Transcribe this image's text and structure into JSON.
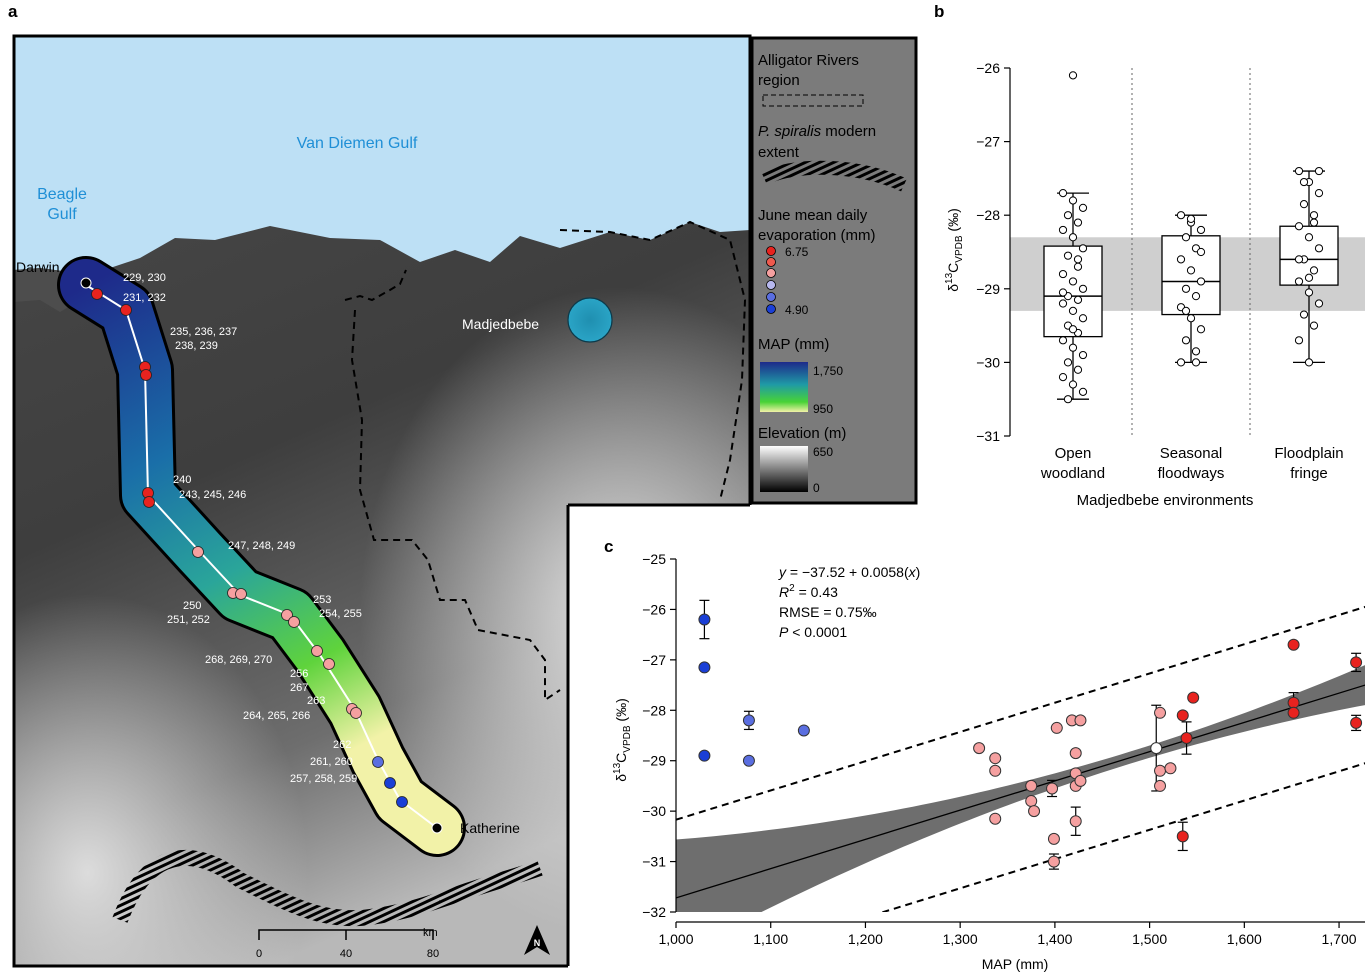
{
  "panels": {
    "a": "a",
    "b": "b",
    "c": "c"
  },
  "map": {
    "gulf_label": "Van Diemen Gulf",
    "beagle_label_1": "Beagle",
    "beagle_label_2": "Gulf",
    "town_darwin": "Darwin",
    "town_katherine": "Katherine",
    "site_madjedbebe": "Madjedbebe",
    "scale_labels": [
      "0",
      "40",
      "80"
    ],
    "scale_unit": "km",
    "north": "N",
    "sample_labels": [
      "229, 230",
      "231, 232",
      "235, 236, 237",
      "238, 239",
      "240",
      "243, 245, 246",
      "247, 248, 249",
      "250",
      "251, 252",
      "253",
      "254, 255",
      "268, 269, 270",
      "256",
      "267",
      "264, 265, 266",
      "263",
      "262",
      "261, 260",
      "257, 258, 259"
    ],
    "colors": {
      "water": "#bde0f5",
      "legend_bg": "#7b7b7b",
      "sea_label": "#1f8fd6",
      "evap_high": "#e8231f",
      "evap_mid": "#f5a0a0",
      "evap_low": "#1a3fd6"
    }
  },
  "legend": {
    "arr_1": "Alligator Rivers",
    "arr_2": "region",
    "ps_prefix": "P. spiralis",
    "ps_suffix": " modern",
    "ps_2": "extent",
    "evap_1": "June mean daily",
    "evap_2": "evaporation (mm)",
    "evap_max": "6.75",
    "evap_min": "4.90",
    "map_title": "MAP (mm)",
    "map_max": "1,750",
    "map_min": "950",
    "elev_title": "Elevation (m)",
    "elev_max": "650",
    "elev_min": "0"
  },
  "chart_data": [
    {
      "type": "box",
      "panel": "b",
      "categories": [
        "Open\nwoodland",
        "Seasonal\nfloodways",
        "Floodplain\nfringe"
      ],
      "ylabel": "δ13C VPDB (‰)",
      "xlabel": "Madjedbebe environments",
      "ylim": [
        -31,
        -26
      ],
      "yticks": [
        -26,
        -27,
        -28,
        -29,
        -30,
        -31
      ],
      "shaded_band": [
        -29.3,
        -28.3
      ],
      "boxes": [
        {
          "min": -30.5,
          "q1": -29.65,
          "median": -29.1,
          "q3": -28.42,
          "max": -27.7
        },
        {
          "min": -30.0,
          "q1": -29.35,
          "median": -28.9,
          "q3": -28.28,
          "max": -28.0
        },
        {
          "min": -30.0,
          "q1": -28.95,
          "median": -28.6,
          "q3": -28.15,
          "max": -27.4
        }
      ],
      "outliers": [
        {
          "group": 0,
          "y": -26.1
        }
      ],
      "points": [
        [
          -27.7,
          -27.8,
          -27.9,
          -28.0,
          -28.1,
          -28.2,
          -28.3,
          -28.45,
          -28.55,
          -28.7,
          -28.8,
          -28.9,
          -29.0,
          -29.1,
          -29.15,
          -29.2,
          -29.3,
          -29.4,
          -29.5,
          -29.6,
          -29.7,
          -29.8,
          -29.9,
          -30.0,
          -30.1,
          -30.2,
          -30.3,
          -30.4,
          -30.5,
          -28.6,
          -29.05,
          -29.55
        ],
        [
          -28.0,
          -28.1,
          -28.2,
          -28.3,
          -28.45,
          -28.6,
          -28.75,
          -28.9,
          -29.0,
          -29.1,
          -29.25,
          -29.4,
          -29.55,
          -29.7,
          -29.85,
          -30.0,
          -28.05,
          -28.5,
          -29.3,
          -30.0
        ],
        [
          -27.4,
          -27.55,
          -27.7,
          -27.85,
          -28.0,
          -28.15,
          -28.3,
          -28.45,
          -28.6,
          -28.75,
          -28.9,
          -29.05,
          -29.2,
          -29.35,
          -29.5,
          -29.7,
          -30.0,
          -27.4,
          -27.55,
          -28.1,
          -28.6,
          -28.85
        ]
      ]
    },
    {
      "type": "scatter",
      "panel": "c",
      "xlabel": "MAP (mm)",
      "ylabel": "δ13C VPDB (‰)",
      "xlim": [
        1000,
        1750
      ],
      "ylim": [
        -32,
        -25
      ],
      "xticks": [
        1000,
        1100,
        1200,
        1300,
        1400,
        1500,
        1600,
        1700
      ],
      "xtick_labels": [
        "1,000",
        "1,100",
        "1,200",
        "1,300",
        "1,400",
        "1,500",
        "1,600",
        "1,700"
      ],
      "yticks": [
        -25,
        -26,
        -27,
        -28,
        -29,
        -30,
        -31,
        -32
      ],
      "fit": {
        "intercept": -37.52,
        "slope": 0.0058
      },
      "prediction_offset": 1.55,
      "annotations": {
        "eq_prefix": "y",
        "eq_rest": " = −37.52 + 0.0058(",
        "eq_x": "x",
        "eq_close": ")",
        "r2_prefix": "R",
        "r2_rest": " = 0.43",
        "rmse": "RMSE = 0.75‰",
        "p_prefix": "P",
        "p_rest": " < 0.0001"
      },
      "points": [
        {
          "x": 1030,
          "y": -26.2,
          "c": "#1a3fd6",
          "err": 0.38
        },
        {
          "x": 1030,
          "y": -27.15,
          "c": "#1a3fd6"
        },
        {
          "x": 1030,
          "y": -28.9,
          "c": "#1a3fd6"
        },
        {
          "x": 1077,
          "y": -28.2,
          "c": "#5a6ee0",
          "err": 0.18
        },
        {
          "x": 1077,
          "y": -29.0,
          "c": "#5a6ee0"
        },
        {
          "x": 1135,
          "y": -28.4,
          "c": "#5a6ee0"
        },
        {
          "x": 1320,
          "y": -28.75,
          "c": "#f5a0a0"
        },
        {
          "x": 1337,
          "y": -28.95,
          "c": "#f5a0a0"
        },
        {
          "x": 1337,
          "y": -29.2,
          "c": "#f5a0a0"
        },
        {
          "x": 1337,
          "y": -30.15,
          "c": "#f5a0a0"
        },
        {
          "x": 1375,
          "y": -29.5,
          "c": "#f5a0a0"
        },
        {
          "x": 1375,
          "y": -29.8,
          "c": "#f5a0a0"
        },
        {
          "x": 1378,
          "y": -30.0,
          "c": "#f5a0a0"
        },
        {
          "x": 1397,
          "y": -29.55,
          "c": "#f5a0a0",
          "err": 0.16
        },
        {
          "x": 1399,
          "y": -30.55,
          "c": "#f5a0a0"
        },
        {
          "x": 1399,
          "y": -31.0,
          "c": "#f5a0a0",
          "err": 0.15
        },
        {
          "x": 1402,
          "y": -28.35,
          "c": "#f5a0a0"
        },
        {
          "x": 1418,
          "y": -28.2,
          "c": "#f5a0a0"
        },
        {
          "x": 1422,
          "y": -28.85,
          "c": "#f5a0a0"
        },
        {
          "x": 1422,
          "y": -29.25,
          "c": "#f5a0a0"
        },
        {
          "x": 1422,
          "y": -29.5,
          "c": "#f5a0a0"
        },
        {
          "x": 1422,
          "y": -30.2,
          "c": "#f5a0a0",
          "err": 0.28
        },
        {
          "x": 1427,
          "y": -28.2,
          "c": "#f5a0a0"
        },
        {
          "x": 1427,
          "y": -29.4,
          "c": "#f5a0a0"
        },
        {
          "x": 1507,
          "y": -28.75,
          "c": "#ffffff",
          "err": 0.85
        },
        {
          "x": 1511,
          "y": -28.05,
          "c": "#f5a0a0"
        },
        {
          "x": 1511,
          "y": -29.2,
          "c": "#f5a0a0"
        },
        {
          "x": 1511,
          "y": -29.5,
          "c": "#f5a0a0"
        },
        {
          "x": 1522,
          "y": -29.15,
          "c": "#f5a0a0"
        },
        {
          "x": 1535,
          "y": -28.1,
          "c": "#e8231f"
        },
        {
          "x": 1535,
          "y": -30.5,
          "c": "#e8231f",
          "err": 0.28
        },
        {
          "x": 1539,
          "y": -28.55,
          "c": "#e8231f",
          "err": 0.32
        },
        {
          "x": 1546,
          "y": -27.75,
          "c": "#e8231f"
        },
        {
          "x": 1652,
          "y": -26.7,
          "c": "#e8231f"
        },
        {
          "x": 1652,
          "y": -27.85,
          "c": "#e8231f",
          "err": 0.2
        },
        {
          "x": 1652,
          "y": -28.05,
          "c": "#e8231f"
        },
        {
          "x": 1718,
          "y": -27.05,
          "c": "#e8231f",
          "err": 0.18
        },
        {
          "x": 1718,
          "y": -28.25,
          "c": "#e8231f",
          "err": 0.15
        }
      ]
    }
  ]
}
